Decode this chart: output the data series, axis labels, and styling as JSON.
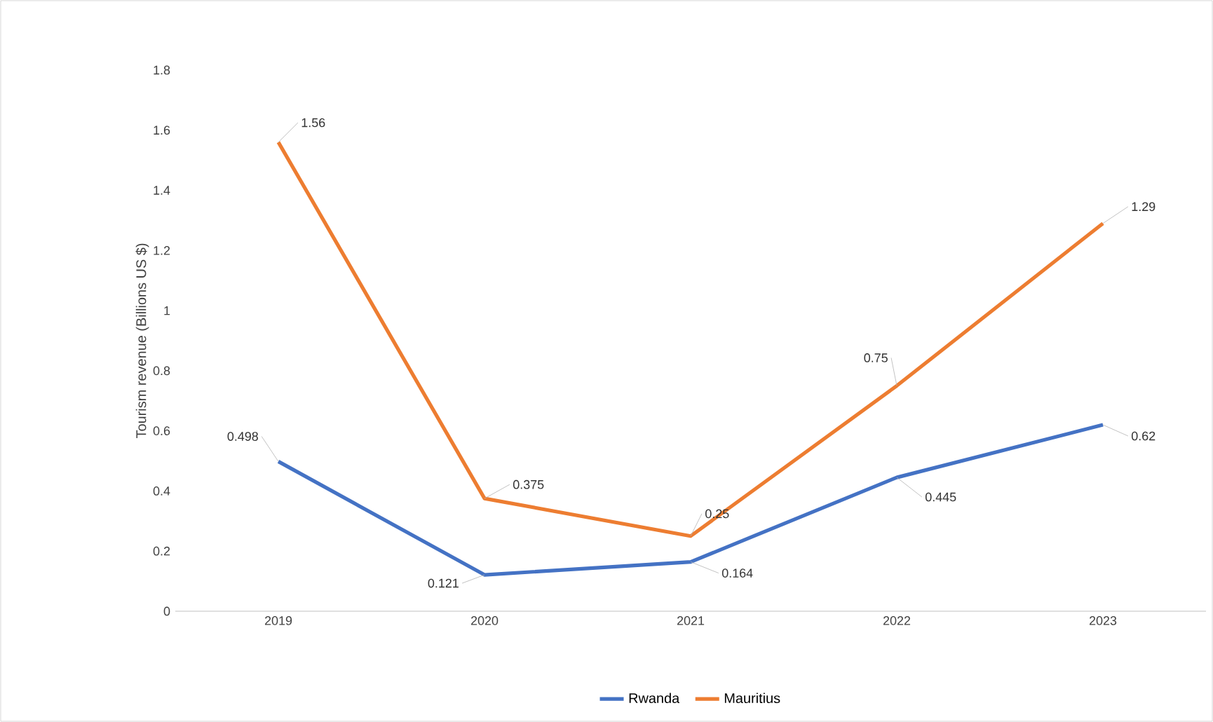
{
  "chart_data": {
    "type": "line",
    "ylabel": "Tourism revenue (Billions US $)",
    "categories": [
      "2019",
      "2020",
      "2021",
      "2022",
      "2023"
    ],
    "series": [
      {
        "name": "Rwanda",
        "color": "#4472c4",
        "values": [
          0.498,
          0.121,
          0.164,
          0.445,
          0.62
        ]
      },
      {
        "name": "Mauritius",
        "color": "#ed7d31",
        "values": [
          1.56,
          0.375,
          0.25,
          0.75,
          1.29
        ]
      }
    ],
    "ylim": [
      0,
      1.8
    ],
    "yticks": [
      0,
      0.2,
      0.4,
      0.6,
      0.8,
      1,
      1.2,
      1.4,
      1.6,
      1.8
    ],
    "data_labels": true,
    "legend": "bottom",
    "grid": false,
    "marker": "none",
    "line_style": "solid"
  }
}
